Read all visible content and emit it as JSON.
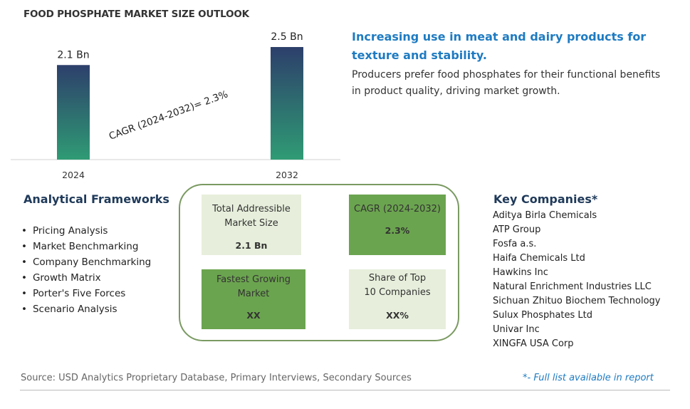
{
  "chart_data": {
    "type": "bar",
    "title": "FOOD PHOSPHATE MARKET SIZE OUTLOOK",
    "categories": [
      "2024",
      "2032"
    ],
    "values": [
      2.1,
      2.5
    ],
    "data_labels": [
      "2.1 Bn",
      "2.5 Bn"
    ],
    "annotation": "CAGR (2024-2032)=  2.3%",
    "xlabel": "",
    "ylabel": "",
    "ylim": [
      0,
      2.5
    ],
    "grid": false,
    "legend": "none",
    "bar_gradient": [
      "#2d3f6b",
      "#2f9b74"
    ]
  },
  "headline": "Increasing use in meat and dairy products for texture and stability.",
  "subtext": "Producers prefer food phosphates for their functional benefits in product quality, driving market growth.",
  "frameworks": {
    "title": "Analytical Frameworks",
    "items": [
      "Pricing Analysis",
      "Market Benchmarking",
      "Company Benchmarking",
      "Growth Matrix",
      "Porter's Five Forces",
      "Scenario Analysis"
    ]
  },
  "metrics": {
    "tam": {
      "label": "Total Addressible Market Size",
      "value": "2.1 Bn"
    },
    "cagr": {
      "label": "CAGR (2024-2032)",
      "value": "2.3%"
    },
    "fastest": {
      "label": "Fastest Growing Market",
      "value": "XX"
    },
    "share": {
      "label": "Share of Top 10 Companies",
      "value": "XX%"
    }
  },
  "key_companies": {
    "title": "Key Companies*",
    "items": [
      "Aditya Birla Chemicals",
      "ATP Group",
      "Fosfa a.s.",
      "Haifa Chemicals Ltd",
      "Hawkins Inc",
      "Natural Enrichment Industries LLC",
      "Sichuan Zhituo Biochem Technology",
      "Sulux Phosphates Ltd",
      "Univar Inc",
      "XINGFA USA Corp"
    ]
  },
  "source": "Source: USD Analytics Proprietary Database, Primary Interviews, Secondary Sources",
  "footnote": "*- Full list available in report",
  "colors": {
    "accent": "#1e7bc2",
    "panel_border": "#7a9a62",
    "metric_light": "#e7efdc",
    "metric_dark": "#6ba44f"
  }
}
